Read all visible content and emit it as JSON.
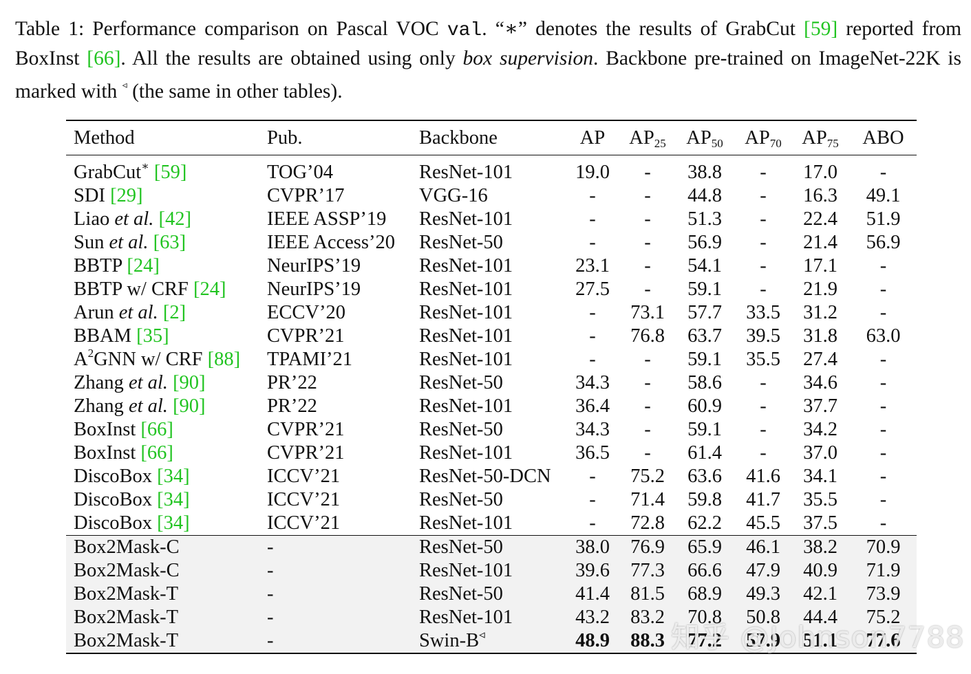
{
  "caption": {
    "p1": "Table 1: Performance comparison on Pascal VOC ",
    "val": "val",
    "p2": ". “∗” denotes the results of GrabCut ",
    "ref1": "[59]",
    "p3": " reported from BoxInst ",
    "ref2": "[66]",
    "p4": ".  All the results are obtained using only ",
    "emph": "box supervision",
    "p5": ".  Backbone pre-trained on ImageNet-22K is marked with ",
    "marker": "◃",
    "p6": " (the same in other tables)."
  },
  "table": {
    "headers": {
      "method": "Method",
      "pub": "Pub.",
      "backbone": "Backbone",
      "ap": "AP",
      "ap25": "AP",
      "ap25_sub": "25",
      "ap50": "AP",
      "ap50_sub": "50",
      "ap70": "AP",
      "ap70_sub": "70",
      "ap75": "AP",
      "ap75_sub": "75",
      "abo": "ABO"
    },
    "rows": [
      {
        "name": "GrabCut",
        "name_sup": "∗",
        "name_ital": "",
        "ref": "[59]",
        "pub": "TOG’04",
        "backbone": "ResNet-101",
        "ap": "19.0",
        "ap25": "-",
        "ap50": "38.8",
        "ap70": "-",
        "ap75": "17.0",
        "abo": "-"
      },
      {
        "name": "SDI",
        "name_sup": "",
        "name_ital": "",
        "ref": "[29]",
        "pub": "CVPR’17",
        "backbone": "VGG-16",
        "ap": "-",
        "ap25": "-",
        "ap50": "44.8",
        "ap70": "-",
        "ap75": "16.3",
        "abo": "49.1"
      },
      {
        "name": "Liao",
        "name_sup": "",
        "name_ital": "et al.",
        "ref": "[42]",
        "pub": "IEEE ASSP’19",
        "backbone": "ResNet-101",
        "ap": "-",
        "ap25": "-",
        "ap50": "51.3",
        "ap70": "-",
        "ap75": "22.4",
        "abo": "51.9"
      },
      {
        "name": "Sun",
        "name_sup": "",
        "name_ital": "et al.",
        "ref": "[63]",
        "pub": "IEEE Access’20",
        "backbone": "ResNet-50",
        "ap": "-",
        "ap25": "-",
        "ap50": "56.9",
        "ap70": "-",
        "ap75": "21.4",
        "abo": "56.9"
      },
      {
        "name": "BBTP",
        "name_sup": "",
        "name_ital": "",
        "ref": "[24]",
        "pub": "NeurIPS’19",
        "backbone": "ResNet-101",
        "ap": "23.1",
        "ap25": "-",
        "ap50": "54.1",
        "ap70": "-",
        "ap75": "17.1",
        "abo": "-"
      },
      {
        "name": "BBTP w/ CRF",
        "name_sup": "",
        "name_ital": "",
        "ref": "[24]",
        "pub": "NeurIPS’19",
        "backbone": "ResNet-101",
        "ap": "27.5",
        "ap25": "-",
        "ap50": "59.1",
        "ap70": "-",
        "ap75": "21.9",
        "abo": "-"
      },
      {
        "name": "Arun",
        "name_sup": "",
        "name_ital": "et al.",
        "ref": "[2]",
        "pub": "ECCV’20",
        "backbone": "ResNet-101",
        "ap": "-",
        "ap25": "73.1",
        "ap50": "57.7",
        "ap70": "33.5",
        "ap75": "31.2",
        "abo": "-"
      },
      {
        "name": "BBAM",
        "name_sup": "",
        "name_ital": "",
        "ref": "[35]",
        "pub": "CVPR’21",
        "backbone": "ResNet-101",
        "ap": "-",
        "ap25": "76.8",
        "ap50": "63.7",
        "ap70": "39.5",
        "ap75": "31.8",
        "abo": "63.0"
      },
      {
        "name": "A",
        "name_sup": "2",
        "name_tail": "GNN w/ CRF",
        "name_ital": "",
        "ref": "[88]",
        "pub": "TPAMI’21",
        "backbone": "ResNet-101",
        "ap": "-",
        "ap25": "-",
        "ap50": "59.1",
        "ap70": "35.5",
        "ap75": "27.4",
        "abo": "-"
      },
      {
        "name": "Zhang",
        "name_sup": "",
        "name_ital": "et al.",
        "ref": "[90]",
        "pub": "PR’22",
        "backbone": "ResNet-50",
        "ap": "34.3",
        "ap25": "-",
        "ap50": "58.6",
        "ap70": "-",
        "ap75": "34.6",
        "abo": "-"
      },
      {
        "name": "Zhang",
        "name_sup": "",
        "name_ital": "et al.",
        "ref": "[90]",
        "pub": "PR’22",
        "backbone": "ResNet-101",
        "ap": "36.4",
        "ap25": "-",
        "ap50": "60.9",
        "ap70": "-",
        "ap75": "37.7",
        "abo": "-"
      },
      {
        "name": "BoxInst",
        "name_sup": "",
        "name_ital": "",
        "ref": "[66]",
        "pub": "CVPR’21",
        "backbone": "ResNet-50",
        "ap": "34.3",
        "ap25": "-",
        "ap50": "59.1",
        "ap70": "-",
        "ap75": "34.2",
        "abo": "-"
      },
      {
        "name": "BoxInst",
        "name_sup": "",
        "name_ital": "",
        "ref": "[66]",
        "pub": "CVPR’21",
        "backbone": "ResNet-101",
        "ap": "36.5",
        "ap25": "-",
        "ap50": "61.4",
        "ap70": "-",
        "ap75": "37.0",
        "abo": "-"
      },
      {
        "name": "DiscoBox",
        "name_sup": "",
        "name_ital": "",
        "ref": "[34]",
        "pub": "ICCV’21",
        "backbone": "ResNet-50-DCN",
        "ap": "-",
        "ap25": "75.2",
        "ap50": "63.6",
        "ap70": "41.6",
        "ap75": "34.1",
        "abo": "-"
      },
      {
        "name": "DiscoBox",
        "name_sup": "",
        "name_ital": "",
        "ref": "[34]",
        "pub": "ICCV’21",
        "backbone": "ResNet-50",
        "ap": "-",
        "ap25": "71.4",
        "ap50": "59.8",
        "ap70": "41.7",
        "ap75": "35.5",
        "abo": "-"
      },
      {
        "name": "DiscoBox",
        "name_sup": "",
        "name_ital": "",
        "ref": "[34]",
        "pub": "ICCV’21",
        "backbone": "ResNet-101",
        "ap": "-",
        "ap25": "72.8",
        "ap50": "62.2",
        "ap70": "45.5",
        "ap75": "37.5",
        "abo": "-"
      }
    ],
    "ours": [
      {
        "name": "Box2Mask-C",
        "pub": "-",
        "backbone": "ResNet-50",
        "backbone_sup": "",
        "ap": "38.0",
        "ap25": "76.9",
        "ap50": "65.9",
        "ap70": "46.1",
        "ap75": "38.2",
        "abo": "70.9",
        "bold": false
      },
      {
        "name": "Box2Mask-C",
        "pub": "-",
        "backbone": "ResNet-101",
        "backbone_sup": "",
        "ap": "39.6",
        "ap25": "77.3",
        "ap50": "66.6",
        "ap70": "47.9",
        "ap75": "40.9",
        "abo": "71.9",
        "bold": false
      },
      {
        "name": "Box2Mask-T",
        "pub": "-",
        "backbone": "ResNet-50",
        "backbone_sup": "",
        "ap": "41.4",
        "ap25": "81.5",
        "ap50": "68.9",
        "ap70": "49.3",
        "ap75": "42.1",
        "abo": "73.9",
        "bold": false
      },
      {
        "name": "Box2Mask-T",
        "pub": "-",
        "backbone": "ResNet-101",
        "backbone_sup": "",
        "ap": "43.2",
        "ap25": "83.2",
        "ap50": "70.8",
        "ap70": "50.8",
        "ap75": "44.4",
        "abo": "75.2",
        "bold": false
      },
      {
        "name": "Box2Mask-T",
        "pub": "-",
        "backbone": "Swin-B",
        "backbone_sup": "◃",
        "ap": "48.9",
        "ap25": "88.3",
        "ap50": "77.2",
        "ap70": "57.9",
        "ap75": "51.1",
        "abo": "77.6",
        "bold": true
      }
    ]
  },
  "watermark": "知乎 @Johnson7788"
}
